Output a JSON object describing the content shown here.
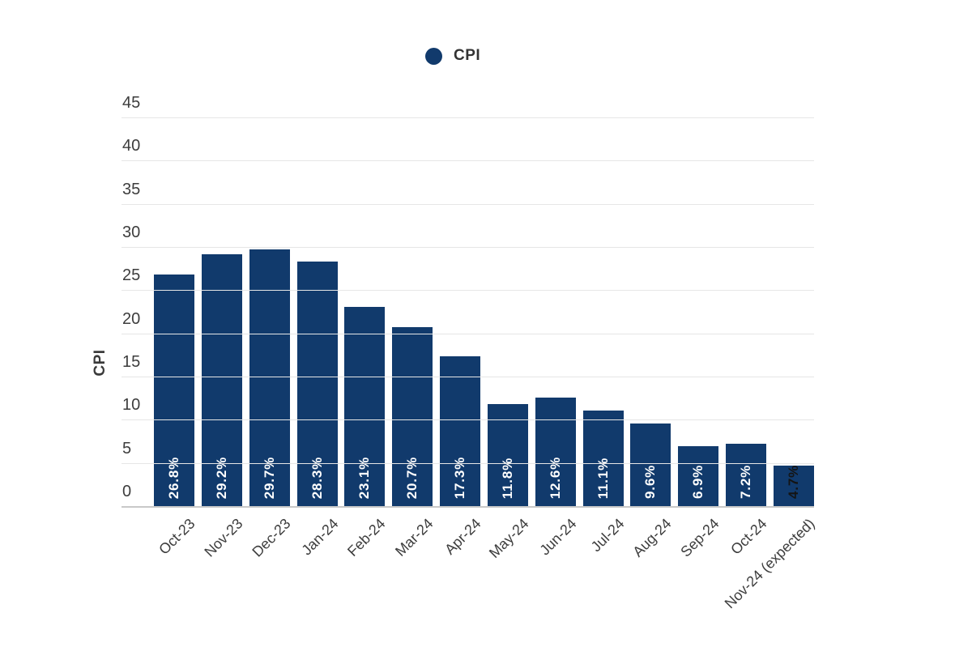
{
  "legend": {
    "label": "CPI"
  },
  "chart_data": {
    "type": "bar",
    "title": "",
    "ylabel": "CPI",
    "xlabel": "",
    "legend_entries": [
      "CPI"
    ],
    "legend_position": "top-center",
    "grid": true,
    "ylim": [
      0,
      45
    ],
    "ytick_step": 5,
    "ytick_labels": [
      "0",
      "5",
      "10",
      "15",
      "20",
      "25",
      "30",
      "35",
      "40",
      "45"
    ],
    "categories": [
      "Oct-23",
      "Nov-23",
      "Dec-23",
      "Jan-24",
      "Feb-24",
      "Mar-24",
      "Apr-24",
      "May-24",
      "Jun-24",
      "Jul-24",
      "Aug-24",
      "Sep-24",
      "Oct-24",
      "Nov-24 (expected)"
    ],
    "values": [
      26.8,
      29.2,
      29.7,
      28.3,
      23.1,
      20.7,
      17.3,
      11.8,
      12.6,
      11.1,
      9.6,
      6.9,
      7.2,
      4.7
    ],
    "value_labels": [
      "26.8%",
      "29.2%",
      "29.7%",
      "28.3%",
      "23.1%",
      "20.7%",
      "17.3%",
      "11.8%",
      "12.6%",
      "11.1%",
      "9.6%",
      "6.9%",
      "7.2%",
      "4.7%"
    ],
    "outside_label_indices": [
      13
    ],
    "colors": {
      "bar": "#113a6c",
      "gridline": "#e6e6e6",
      "zero_line": "#c9c9c9",
      "axis_text": "#3d3d3d",
      "label_inside": "#ffffff",
      "label_outside": "#141414",
      "legend_dot": "#113a6c"
    }
  }
}
